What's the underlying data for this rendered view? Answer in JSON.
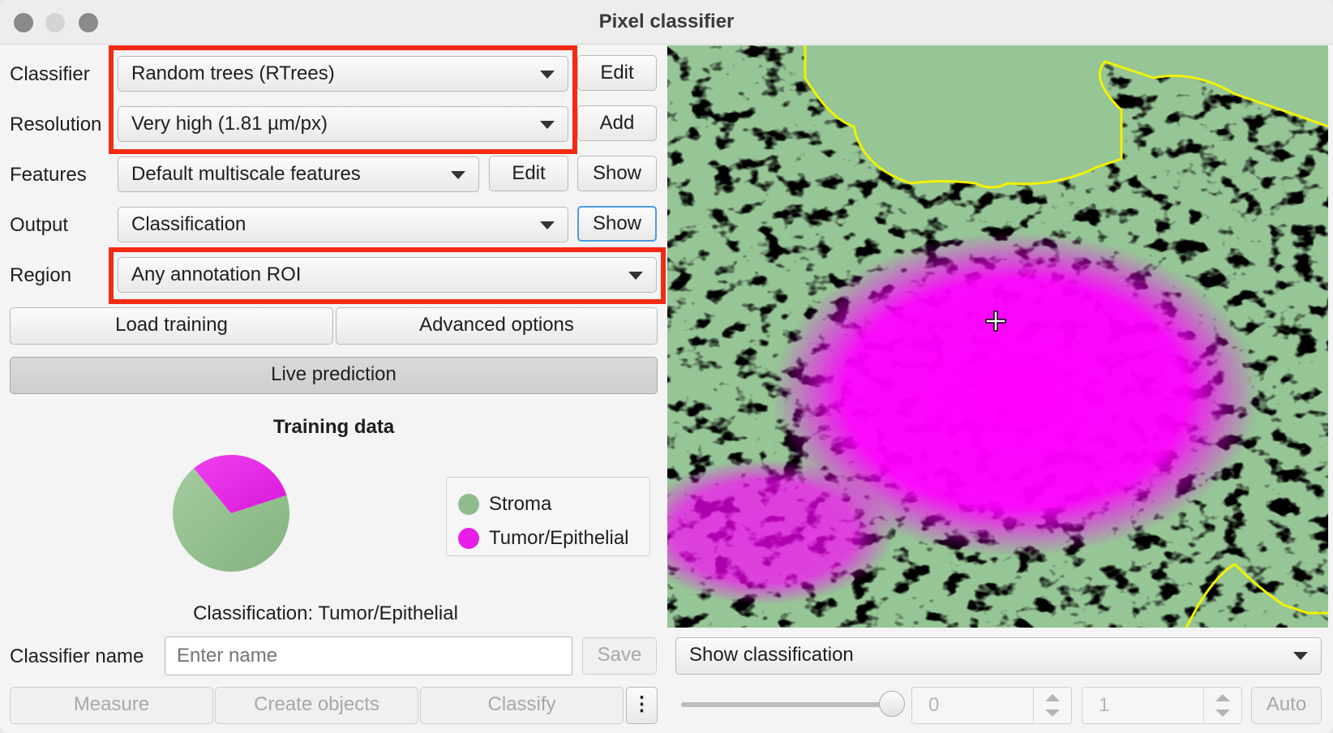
{
  "window": {
    "title": "Pixel classifier"
  },
  "classifier": {
    "label": "Classifier",
    "value": "Random trees (RTrees)",
    "edit_label": "Edit"
  },
  "resolution": {
    "label": "Resolution",
    "value": "Very high (1.81 µm/px)",
    "add_label": "Add"
  },
  "features": {
    "label": "Features",
    "value": "Default multiscale features",
    "edit_label": "Edit",
    "show_label": "Show"
  },
  "output": {
    "label": "Output",
    "value": "Classification",
    "show_label": "Show"
  },
  "region": {
    "label": "Region",
    "value": "Any annotation ROI"
  },
  "buttons": {
    "load_training": "Load training",
    "advanced_options": "Advanced options",
    "live_prediction": "Live prediction"
  },
  "training": {
    "title": "Training data",
    "legend": [
      {
        "name": "Stroma",
        "color": "#8fbc8c"
      },
      {
        "name": "Tumor/Epithelial",
        "color": "#e81ee8"
      }
    ],
    "pie": {
      "Stroma": 0.69,
      "Tumor/Epithelial": 0.31
    },
    "classification_text": "Classification: Tumor/Epithelial"
  },
  "classifier_name": {
    "label": "Classifier name",
    "placeholder": "Enter name",
    "save_label": "Save"
  },
  "bottom": {
    "measure": "Measure",
    "create_objects": "Create objects",
    "classify": "Classify",
    "more": "⋮"
  },
  "overlay": {
    "display_value": "Show classification",
    "slider_value": 1.0,
    "min_value": "0",
    "max_value": "1",
    "auto_label": "Auto",
    "colors": {
      "background": "#96c596",
      "tumor": "#ff00ff",
      "boundary": "#f2f200"
    }
  }
}
